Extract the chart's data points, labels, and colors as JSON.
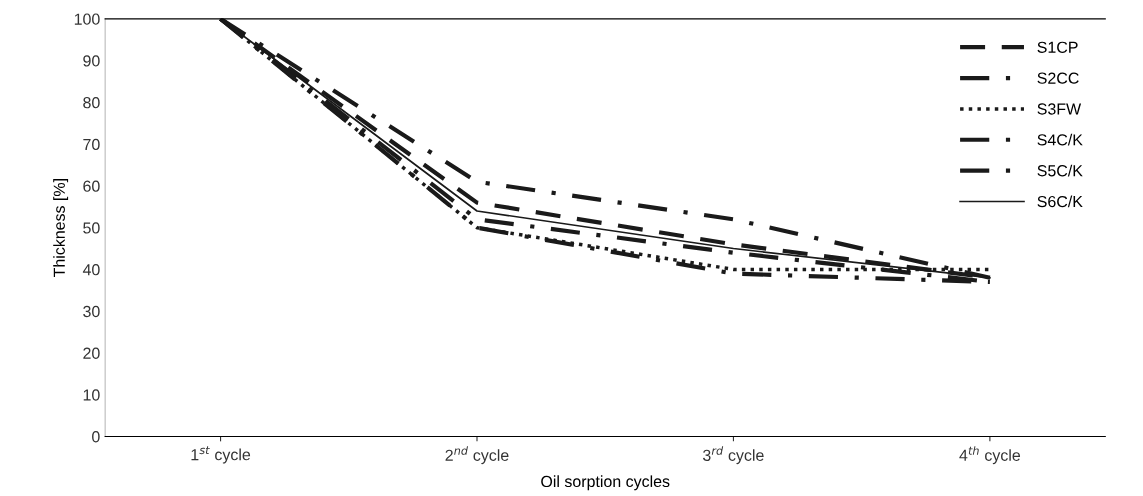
{
  "chart_data": {
    "type": "line",
    "xlabel": "Oil sorption cycles",
    "ylabel": "Thickness [%]",
    "categories": [
      "1$^{st}$ cycle",
      "2$^{nd}$ cycle",
      "3$^{rd}$ cycle",
      "4$^{th}$ cycle"
    ],
    "ylim": [
      0,
      100
    ],
    "yticks": [
      0,
      10,
      20,
      30,
      40,
      50,
      60,
      70,
      80,
      90,
      100
    ],
    "grid": false,
    "legend": "top right",
    "marker": "none",
    "series": [
      {
        "name": "S1CP",
        "color": "#1a1a1a",
        "line_style": "dashed",
        "values": [
          100,
          56,
          46,
          38
        ]
      },
      {
        "name": "S2CC",
        "color": "#1a1a1a",
        "line_style": "dashdot",
        "values": [
          100,
          52,
          44,
          37
        ]
      },
      {
        "name": "S3FW",
        "color": "#1a1a1a",
        "line_style": "dotted",
        "values": [
          100,
          50,
          40,
          40
        ]
      },
      {
        "name": "S4C/K",
        "color": "#1a1a1a",
        "line_style": "dashdot",
        "values": [
          100,
          61,
          52,
          38
        ]
      },
      {
        "name": "S5C/K",
        "color": "#1a1a1a",
        "line_style": "dashdot",
        "values": [
          100,
          50,
          39,
          37
        ]
      },
      {
        "name": "S6C/K",
        "color": "#1a1a1a",
        "line_style": "solid",
        "values": [
          100,
          54,
          45,
          38
        ]
      }
    ]
  }
}
